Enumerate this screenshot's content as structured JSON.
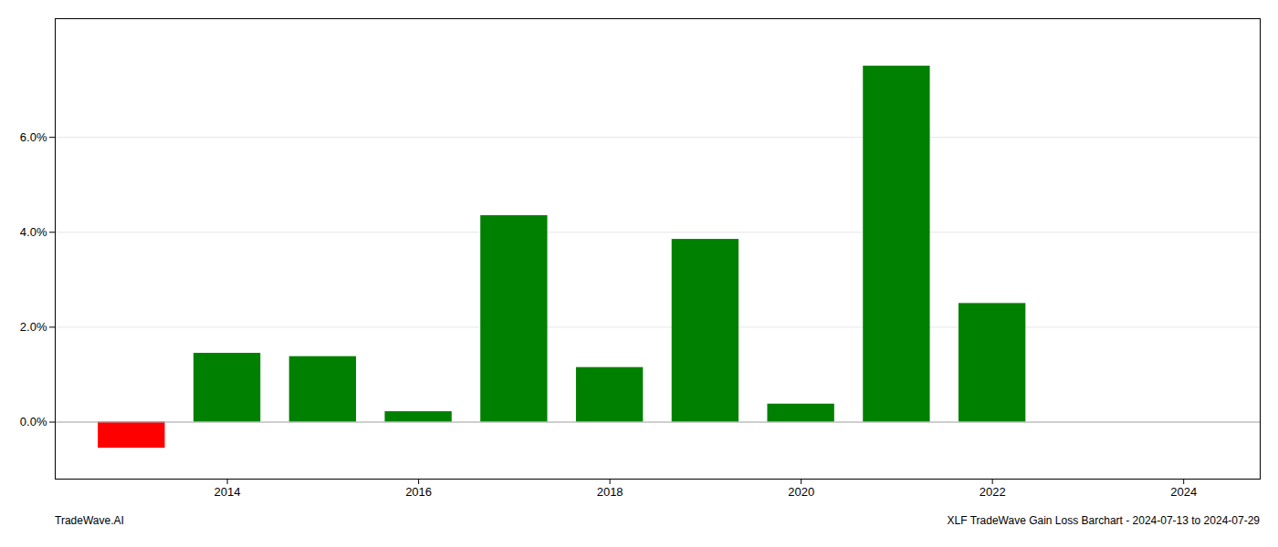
{
  "chart_data": {
    "type": "bar",
    "x": [
      2013,
      2014,
      2015,
      2016,
      2017,
      2018,
      2019,
      2020,
      2021,
      2022,
      2023
    ],
    "values": [
      -0.0055,
      0.0145,
      0.0138,
      0.0022,
      0.0435,
      0.0115,
      0.0385,
      0.0038,
      0.075,
      0.025,
      0.0
    ],
    "colors": [
      "#ff0000",
      "#008000",
      "#008000",
      "#008000",
      "#008000",
      "#008000",
      "#008000",
      "#008000",
      "#008000",
      "#008000",
      "#008000"
    ],
    "xlim": [
      2012.2,
      2024.8
    ],
    "xticks": [
      2014,
      2016,
      2018,
      2020,
      2022,
      2024
    ],
    "ylim": [
      -0.012,
      0.085
    ],
    "yticks": [
      {
        "value": 0.0,
        "label": "0.0%"
      },
      {
        "value": 0.02,
        "label": "2.0%"
      },
      {
        "value": 0.04,
        "label": "4.0%"
      },
      {
        "value": 0.06,
        "label": "6.0%"
      }
    ],
    "grid": true,
    "annotations": [
      "TradeWave.AI",
      "XLF TradeWave Gain Loss Barchart - 2024-07-13 to 2024-07-29"
    ]
  }
}
